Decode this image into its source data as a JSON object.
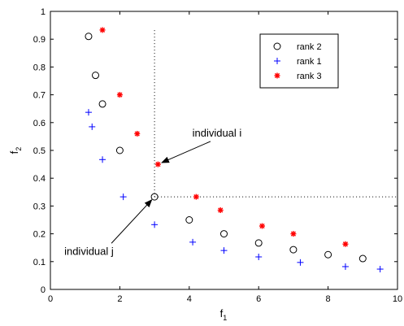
{
  "chart_data": {
    "type": "scatter",
    "title": "",
    "xlabel": "f",
    "xlabel_sub": "1",
    "ylabel": "f",
    "ylabel_sub": "2",
    "xlim": [
      0,
      10
    ],
    "ylim": [
      0,
      1
    ],
    "xticks": [
      0,
      2,
      4,
      6,
      8,
      10
    ],
    "yticks": [
      0,
      0.1,
      0.2,
      0.3,
      0.4,
      0.5,
      0.6,
      0.7,
      0.8,
      0.9,
      1
    ],
    "grid": false,
    "legend_position": "top-right",
    "series": [
      {
        "name": "rank 2",
        "marker": "circle",
        "color": "#000000",
        "x": [
          1.1,
          1.3,
          1.5,
          2.0,
          3.0,
          4.0,
          5.0,
          6.0,
          7.0,
          8.0,
          9.0
        ],
        "y": [
          0.91,
          0.77,
          0.667,
          0.5,
          0.333,
          0.25,
          0.2,
          0.167,
          0.143,
          0.125,
          0.111
        ]
      },
      {
        "name": "rank 1",
        "marker": "plus",
        "color": "#0000ff",
        "x": [
          1.1,
          1.2,
          1.5,
          2.1,
          3.0,
          4.1,
          5.0,
          6.0,
          7.2,
          8.5,
          9.5
        ],
        "y": [
          0.637,
          0.585,
          0.467,
          0.333,
          0.233,
          0.17,
          0.14,
          0.117,
          0.097,
          0.082,
          0.073
        ]
      },
      {
        "name": "rank 3",
        "marker": "asterisk",
        "color": "#ff0000",
        "x": [
          1.5,
          2.0,
          2.5,
          3.1,
          4.2,
          4.9,
          6.1,
          7.0,
          8.5
        ],
        "y": [
          0.933,
          0.7,
          0.56,
          0.45,
          0.333,
          0.285,
          0.228,
          0.2,
          0.163
        ]
      }
    ],
    "reference_lines": [
      {
        "orientation": "vertical",
        "x": 3.0,
        "y_from": 0.333,
        "y_to": 0.94
      },
      {
        "orientation": "horizontal",
        "y": 0.333,
        "x_from": 3.0,
        "x_to": 10.0
      }
    ],
    "annotations": [
      {
        "text": "individual i",
        "point": [
          3.1,
          0.45
        ],
        "text_at": [
          4.8,
          0.55
        ]
      },
      {
        "text": "individual j",
        "point": [
          3.0,
          0.333
        ],
        "text_at": [
          0.4,
          0.125
        ]
      }
    ]
  }
}
